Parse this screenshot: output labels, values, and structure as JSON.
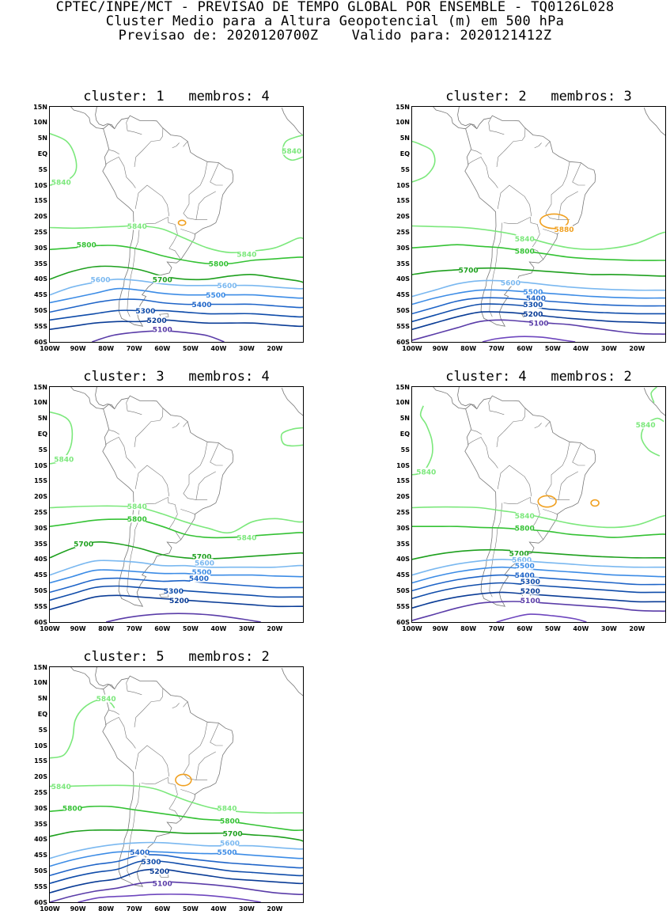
{
  "header": {
    "line1": "CPTEC/INPE/MCT - PREVISAO DE TEMPO GLOBAL POR ENSEMBLE - TQ0126L028",
    "line2": "Cluster Medio para a Altura Geopotencial (m) em 500 hPa",
    "line3": "Previsao de: 2020120700Z    Valido para: 2020121412Z"
  },
  "chart_data": {
    "type": "contour-map",
    "variable": "Altura Geopotencial (m) em 500 hPa",
    "lon_labels": [
      "100W",
      "90W",
      "80W",
      "70W",
      "60W",
      "50W",
      "40W",
      "30W",
      "20W"
    ],
    "lat_labels": [
      "15N",
      "10N",
      "5N",
      "EQ",
      "5S",
      "10S",
      "15S",
      "20S",
      "25S",
      "30S",
      "35S",
      "40S",
      "45S",
      "50S",
      "55S",
      "60S"
    ],
    "lon_range": [
      -100,
      -10
    ],
    "lat_range": [
      -60,
      15
    ],
    "colors": {
      "5880": "#f0a020",
      "5840": "#7ce87c",
      "5800": "#34c234",
      "5700": "#1ea01e",
      "5600": "#7ab8f0",
      "5500": "#3c8ce6",
      "5400": "#1e64c8",
      "5300": "#0f4caa",
      "5200": "#0a3c96",
      "5100": "#5a3ca8",
      "5000": "#6e46be",
      "coast": "#777777"
    },
    "panels": [
      {
        "title": "cluster: 1   membros: 4",
        "labels": [
          {
            "text": "5840",
            "lon": -96,
            "lat": -9
          },
          {
            "text": "5840",
            "lon": -14,
            "lat": 1
          },
          {
            "text": "5840",
            "lon": -69,
            "lat": -23
          },
          {
            "text": "5800",
            "lon": -87,
            "lat": -29
          },
          {
            "text": "5840",
            "lon": -30,
            "lat": -32
          },
          {
            "text": "5800",
            "lon": -40,
            "lat": -35
          },
          {
            "text": "5700",
            "lon": -60,
            "lat": -40
          },
          {
            "text": "5600",
            "lon": -82,
            "lat": -40
          },
          {
            "text": "5600",
            "lon": -37,
            "lat": -42
          },
          {
            "text": "5500",
            "lon": -41,
            "lat": -45
          },
          {
            "text": "5400",
            "lon": -46,
            "lat": -48
          },
          {
            "text": "5300",
            "lon": -66,
            "lat": -50
          },
          {
            "text": "5200",
            "lon": -62,
            "lat": -53
          },
          {
            "text": "5100",
            "lon": -60,
            "lat": -56
          }
        ]
      },
      {
        "title": "cluster: 2   membros: 3",
        "labels": [
          {
            "text": "5880",
            "lon": -46,
            "lat": -24
          },
          {
            "text": "5840",
            "lon": -60,
            "lat": -27
          },
          {
            "text": "5800",
            "lon": -60,
            "lat": -31
          },
          {
            "text": "5700",
            "lon": -80,
            "lat": -37
          },
          {
            "text": "5600",
            "lon": -65,
            "lat": -41
          },
          {
            "text": "5500",
            "lon": -57,
            "lat": -44
          },
          {
            "text": "5400",
            "lon": -56,
            "lat": -46
          },
          {
            "text": "5300",
            "lon": -57,
            "lat": -48
          },
          {
            "text": "5200",
            "lon": -57,
            "lat": -51
          },
          {
            "text": "5100",
            "lon": -55,
            "lat": -54
          }
        ]
      },
      {
        "title": "cluster: 3   membros: 4",
        "labels": [
          {
            "text": "5840",
            "lon": -95,
            "lat": -8
          },
          {
            "text": "5840",
            "lon": -69,
            "lat": -23
          },
          {
            "text": "5800",
            "lon": -69,
            "lat": -27
          },
          {
            "text": "5840",
            "lon": -30,
            "lat": -33
          },
          {
            "text": "5700",
            "lon": -88,
            "lat": -35
          },
          {
            "text": "5700",
            "lon": -46,
            "lat": -39
          },
          {
            "text": "5600",
            "lon": -45,
            "lat": -41
          },
          {
            "text": "5500",
            "lon": -46,
            "lat": -44
          },
          {
            "text": "5400",
            "lon": -47,
            "lat": -46
          },
          {
            "text": "5300",
            "lon": -56,
            "lat": -50
          },
          {
            "text": "5200",
            "lon": -54,
            "lat": -53
          }
        ]
      },
      {
        "title": "cluster: 4   membros: 2",
        "labels": [
          {
            "text": "5840",
            "lon": -95,
            "lat": -12
          },
          {
            "text": "5840",
            "lon": -17,
            "lat": 3
          },
          {
            "text": "5840",
            "lon": -60,
            "lat": -26
          },
          {
            "text": "5800",
            "lon": -60,
            "lat": -30
          },
          {
            "text": "5700",
            "lon": -62,
            "lat": -38
          },
          {
            "text": "5600",
            "lon": -61,
            "lat": -40
          },
          {
            "text": "5500",
            "lon": -60,
            "lat": -42
          },
          {
            "text": "5400",
            "lon": -60,
            "lat": -45
          },
          {
            "text": "5300",
            "lon": -58,
            "lat": -47
          },
          {
            "text": "5200",
            "lon": -58,
            "lat": -50
          },
          {
            "text": "5100",
            "lon": -58,
            "lat": -53
          }
        ]
      },
      {
        "title": "cluster: 5   membros: 2",
        "labels": [
          {
            "text": "5840",
            "lon": -80,
            "lat": 5
          },
          {
            "text": "5840",
            "lon": -96,
            "lat": -23
          },
          {
            "text": "5800",
            "lon": -92,
            "lat": -30
          },
          {
            "text": "5840",
            "lon": -37,
            "lat": -30
          },
          {
            "text": "5800",
            "lon": -36,
            "lat": -34
          },
          {
            "text": "5700",
            "lon": -35,
            "lat": -38
          },
          {
            "text": "5600",
            "lon": -36,
            "lat": -41
          },
          {
            "text": "5500",
            "lon": -37,
            "lat": -44
          },
          {
            "text": "5400",
            "lon": -68,
            "lat": -44
          },
          {
            "text": "5300",
            "lon": -64,
            "lat": -47
          },
          {
            "text": "5200",
            "lon": -61,
            "lat": -50
          },
          {
            "text": "5100",
            "lon": -60,
            "lat": -54
          }
        ]
      }
    ]
  }
}
